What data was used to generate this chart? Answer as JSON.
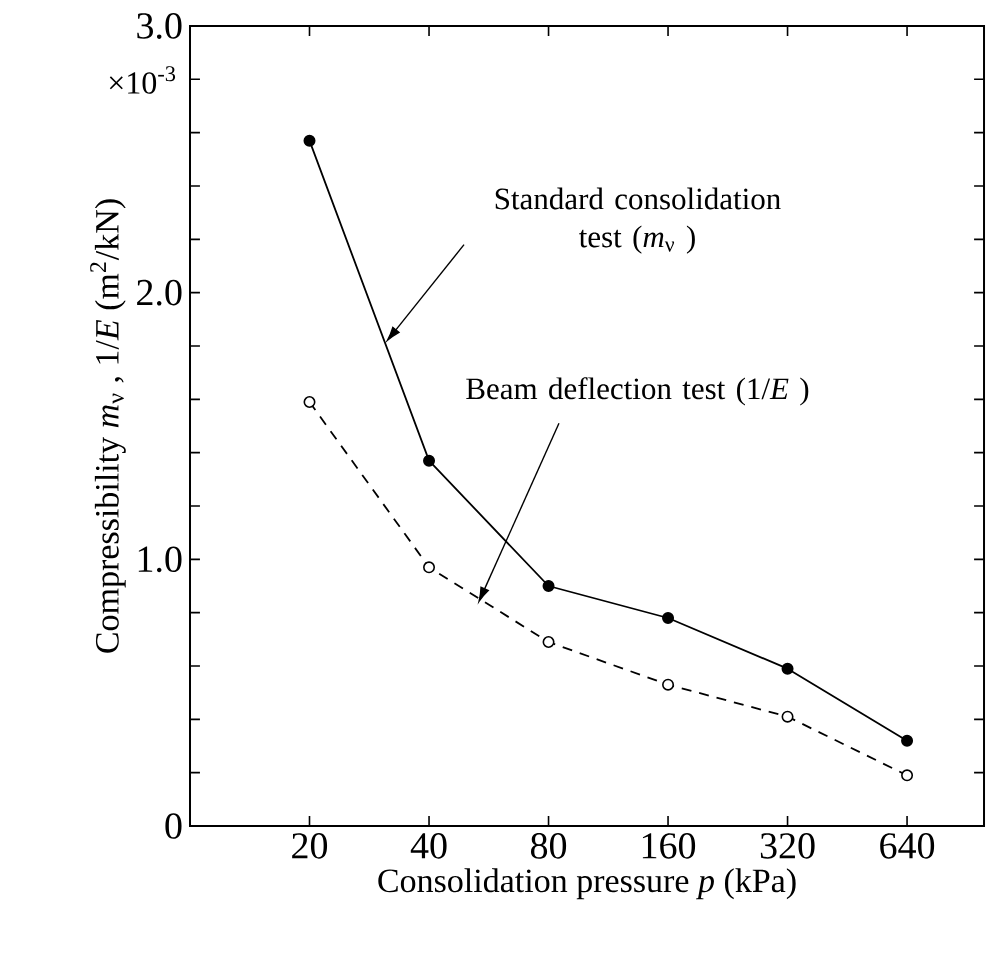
{
  "chart_data": {
    "type": "line",
    "xlabel": "Consolidation pressure  *p* (kPa)",
    "ylabel": "Compressibility  *m*$_{ν}$ , 1/*E*  (m$^{2}$/kN)",
    "log": "x",
    "x": [
      20,
      40,
      80,
      160,
      320,
      640
    ],
    "xlim": [
      10,
      1000
    ],
    "xticks": [
      20,
      40,
      80,
      160,
      320,
      640
    ],
    "ylim": [
      0,
      3.0
    ],
    "yticks": [
      {
        "value": 0,
        "label": "0"
      },
      {
        "value": 0.2,
        "label": null
      },
      {
        "value": 0.4,
        "label": null
      },
      {
        "value": 0.6,
        "label": null
      },
      {
        "value": 0.8,
        "label": null
      },
      {
        "value": 1.0,
        "label": "1.0"
      },
      {
        "value": 1.2,
        "label": null
      },
      {
        "value": 1.4,
        "label": null
      },
      {
        "value": 1.6,
        "label": null
      },
      {
        "value": 1.8,
        "label": null
      },
      {
        "value": 2.0,
        "label": "2.0"
      },
      {
        "value": 2.2,
        "label": null
      },
      {
        "value": 2.4,
        "label": null
      },
      {
        "value": 2.6,
        "label": null
      },
      {
        "value": 2.8,
        "label": null
      },
      {
        "value": 3.0,
        "label": "3.0"
      }
    ],
    "marker": "circle",
    "series": [
      {
        "color": "#000000",
        "line_style": "solid",
        "values": [
          2.57,
          1.37,
          0.9,
          0.78,
          0.59,
          0.32
        ]
      },
      {
        "color": "#000000",
        "line_style": "dashed",
        "values": [
          1.59,
          0.97,
          0.69,
          0.53,
          0.41,
          0.19
        ]
      }
    ],
    "annotations": [
      "×10$^{-3}$",
      {
        "text": "Standard consolidation test (*m*$_{ν}$ )",
        "x": 31,
        "y": 1.81
      },
      {
        "text": "Beam deflection test (1/*E* )",
        "x": 53,
        "y": 0.83
      }
    ]
  }
}
